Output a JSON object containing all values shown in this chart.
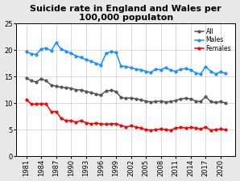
{
  "title": "Suicide rate in England and Wales per\n100,000 populaton",
  "years": [
    1981,
    1982,
    1983,
    1984,
    1985,
    1986,
    1987,
    1988,
    1989,
    1990,
    1991,
    1992,
    1993,
    1994,
    1995,
    1996,
    1997,
    1998,
    1999,
    2000,
    2001,
    2002,
    2003,
    2004,
    2005,
    2006,
    2007,
    2008,
    2009,
    2010,
    2011,
    2012,
    2013,
    2014,
    2015,
    2016,
    2017,
    2018,
    2019,
    2020,
    2021
  ],
  "all": [
    14.8,
    14.2,
    14.0,
    14.6,
    14.2,
    13.4,
    13.2,
    13.0,
    12.9,
    12.8,
    12.5,
    12.5,
    12.2,
    12.0,
    11.7,
    11.5,
    12.3,
    12.4,
    12.2,
    11.1,
    10.9,
    11.0,
    10.8,
    10.6,
    10.4,
    10.2,
    10.3,
    10.4,
    10.2,
    10.3,
    10.5,
    10.8,
    10.9,
    10.8,
    10.4,
    10.3,
    11.2,
    10.3,
    10.1,
    10.3,
    10.0
  ],
  "males": [
    19.7,
    19.3,
    19.2,
    20.2,
    20.4,
    19.9,
    21.4,
    20.2,
    19.8,
    19.4,
    18.9,
    18.6,
    18.2,
    17.9,
    17.5,
    17.2,
    19.4,
    19.7,
    19.6,
    17.0,
    16.9,
    16.7,
    16.4,
    16.3,
    16.0,
    15.8,
    16.4,
    16.3,
    16.7,
    16.2,
    16.0,
    16.4,
    16.5,
    16.3,
    15.7,
    15.5,
    16.9,
    16.0,
    15.5,
    15.9,
    15.6
  ],
  "females": [
    10.7,
    9.8,
    9.8,
    9.9,
    9.8,
    8.4,
    8.4,
    7.1,
    6.7,
    6.7,
    6.4,
    6.7,
    6.3,
    6.1,
    6.2,
    6.1,
    6.0,
    6.1,
    6.1,
    5.8,
    5.5,
    5.7,
    5.5,
    5.3,
    5.0,
    4.9,
    5.0,
    5.1,
    5.0,
    4.9,
    5.3,
    5.4,
    5.3,
    5.4,
    5.3,
    5.1,
    5.5,
    4.9,
    5.0,
    5.1,
    5.0
  ],
  "all_color": "#555555",
  "males_color": "#1e90ff",
  "females_color": "#ff0000",
  "fig_bg_color": "#e8e8e8",
  "plot_bg_color": "#ffffff",
  "grid_color": "#cccccc",
  "ylim": [
    0,
    25
  ],
  "yticks": [
    0,
    5,
    10,
    15,
    20,
    25
  ],
  "xticks": [
    1981,
    1984,
    1987,
    1990,
    1993,
    1996,
    1999,
    2002,
    2005,
    2008,
    2011,
    2014,
    2017,
    2020
  ],
  "legend_labels": [
    "All",
    "Males",
    "Females"
  ],
  "legend_colors": [
    "#555555",
    "#1e90ff",
    "#ff0000"
  ],
  "marker": "o",
  "markersize": 2.0,
  "linewidth": 1.1,
  "title_fontsize": 8.0,
  "tick_fontsize": 6.0,
  "legend_fontsize": 5.5
}
